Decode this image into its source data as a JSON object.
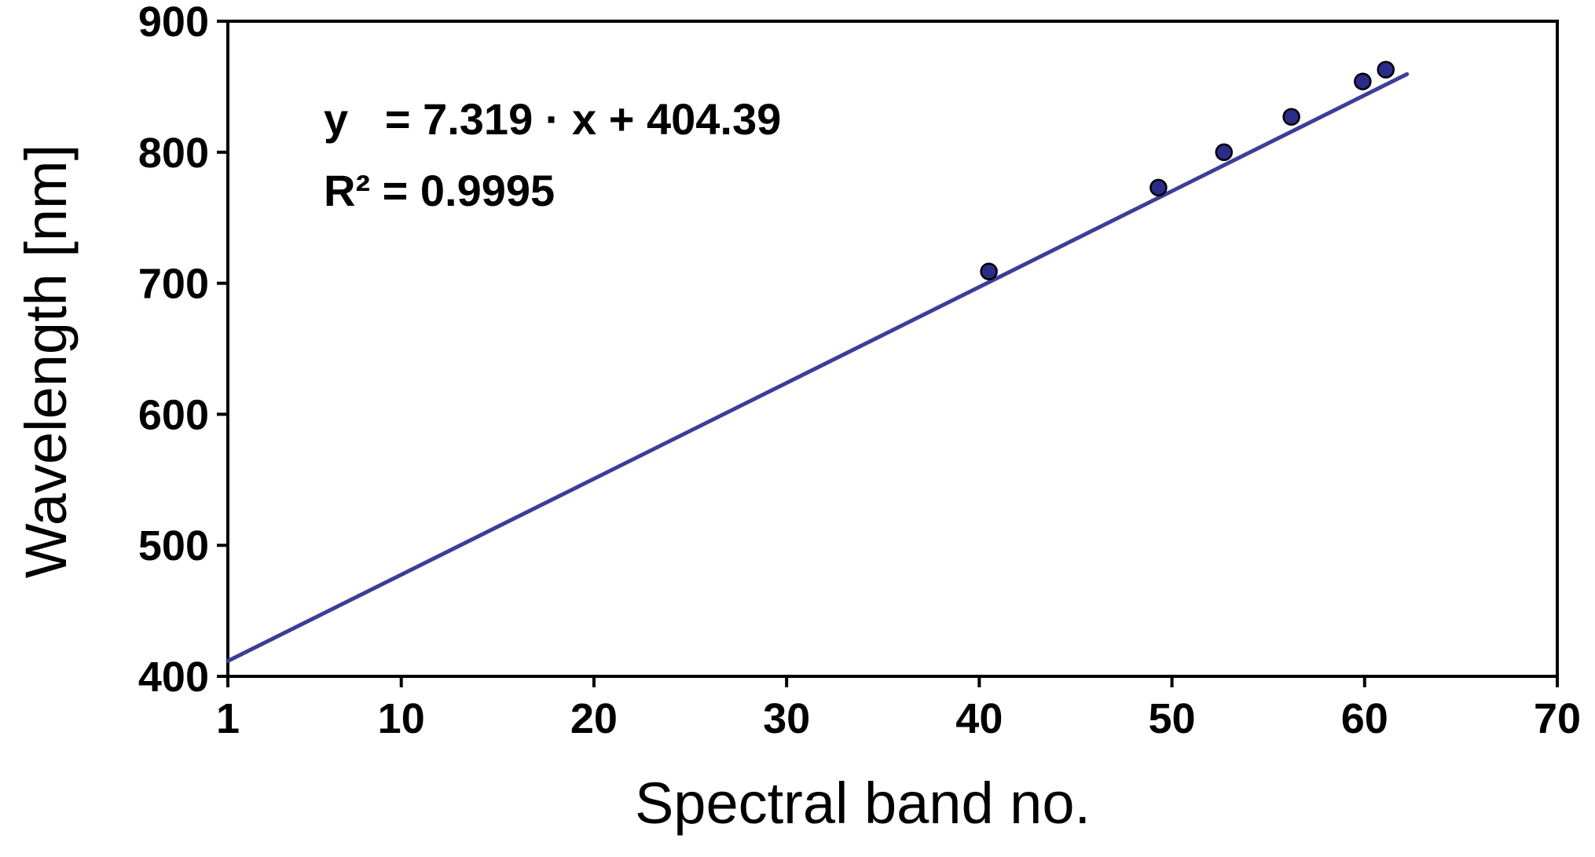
{
  "chart_data": {
    "type": "scatter",
    "xlabel": "Spectral band no.",
    "ylabel": "Wavelength [nm]",
    "xlim": [
      1,
      70
    ],
    "ylim": [
      400,
      900
    ],
    "x_ticks": [
      1,
      10,
      20,
      30,
      40,
      50,
      60,
      70
    ],
    "x_tick_labels": [
      "1",
      "10",
      "20",
      "30",
      "40",
      "50",
      "60",
      "70"
    ],
    "y_ticks": [
      400,
      500,
      600,
      700,
      800,
      900
    ],
    "y_tick_labels": [
      "400",
      "500",
      "600",
      "700",
      "800",
      "900"
    ],
    "grid": false,
    "legend": "none",
    "points": {
      "x": [
        40.5,
        49.3,
        52.7,
        56.2,
        59.9,
        61.1
      ],
      "y": [
        709,
        773,
        800,
        827,
        854,
        863
      ]
    },
    "fit": {
      "slope": 7.319,
      "intercept": 404.39,
      "x_range": [
        1,
        62.2
      ]
    },
    "annotations": {
      "equation": "y   = 7.319 · x + 404.39",
      "r_squared": "R² = 0.9995"
    },
    "colors": {
      "marker": "#2b2b8a",
      "fit_line": "#3d3d99",
      "axes": "#000000"
    }
  }
}
